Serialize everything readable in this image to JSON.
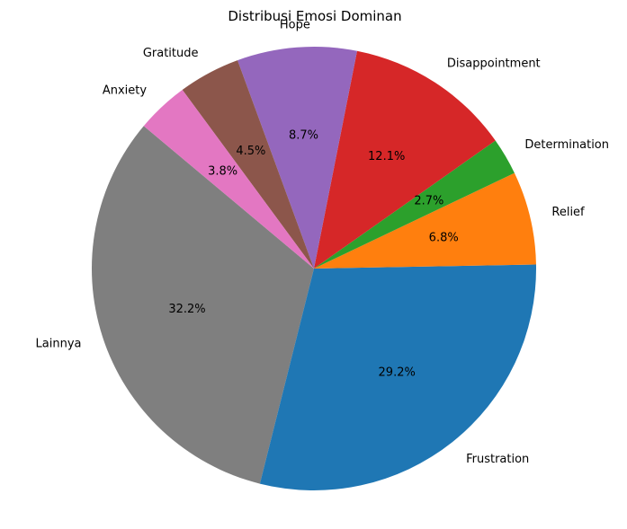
{
  "chart_data": {
    "type": "pie",
    "title": "Distribusi Emosi Dominan",
    "start_angle_deg": 140,
    "direction": "counterclockwise",
    "categories": [
      "Lainnya",
      "Frustration",
      "Relief",
      "Determination",
      "Disappointment",
      "Hope",
      "Gratitude",
      "Anxiety"
    ],
    "values": [
      32.2,
      29.2,
      6.8,
      2.7,
      12.1,
      8.7,
      4.5,
      3.8
    ],
    "labels_pct": [
      "32.2%",
      "29.2%",
      "6.8%",
      "2.7%",
      "12.1%",
      "8.7%",
      "4.5%",
      "3.8%"
    ],
    "colors": [
      "#7f7f7f",
      "#1f77b4",
      "#ff7f0e",
      "#2ca02c",
      "#d62728",
      "#9467bd",
      "#8c564b",
      "#e377c2"
    ],
    "legend": "none"
  }
}
